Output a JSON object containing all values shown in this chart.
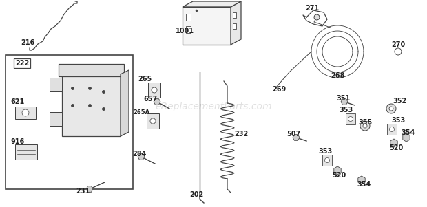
{
  "bg_color": "#ffffff",
  "watermark": "eReplacementParts.com",
  "watermark_color": "#c8c8c8",
  "watermark_alpha": 0.55,
  "line_color": "#444444",
  "label_color": "#222222"
}
